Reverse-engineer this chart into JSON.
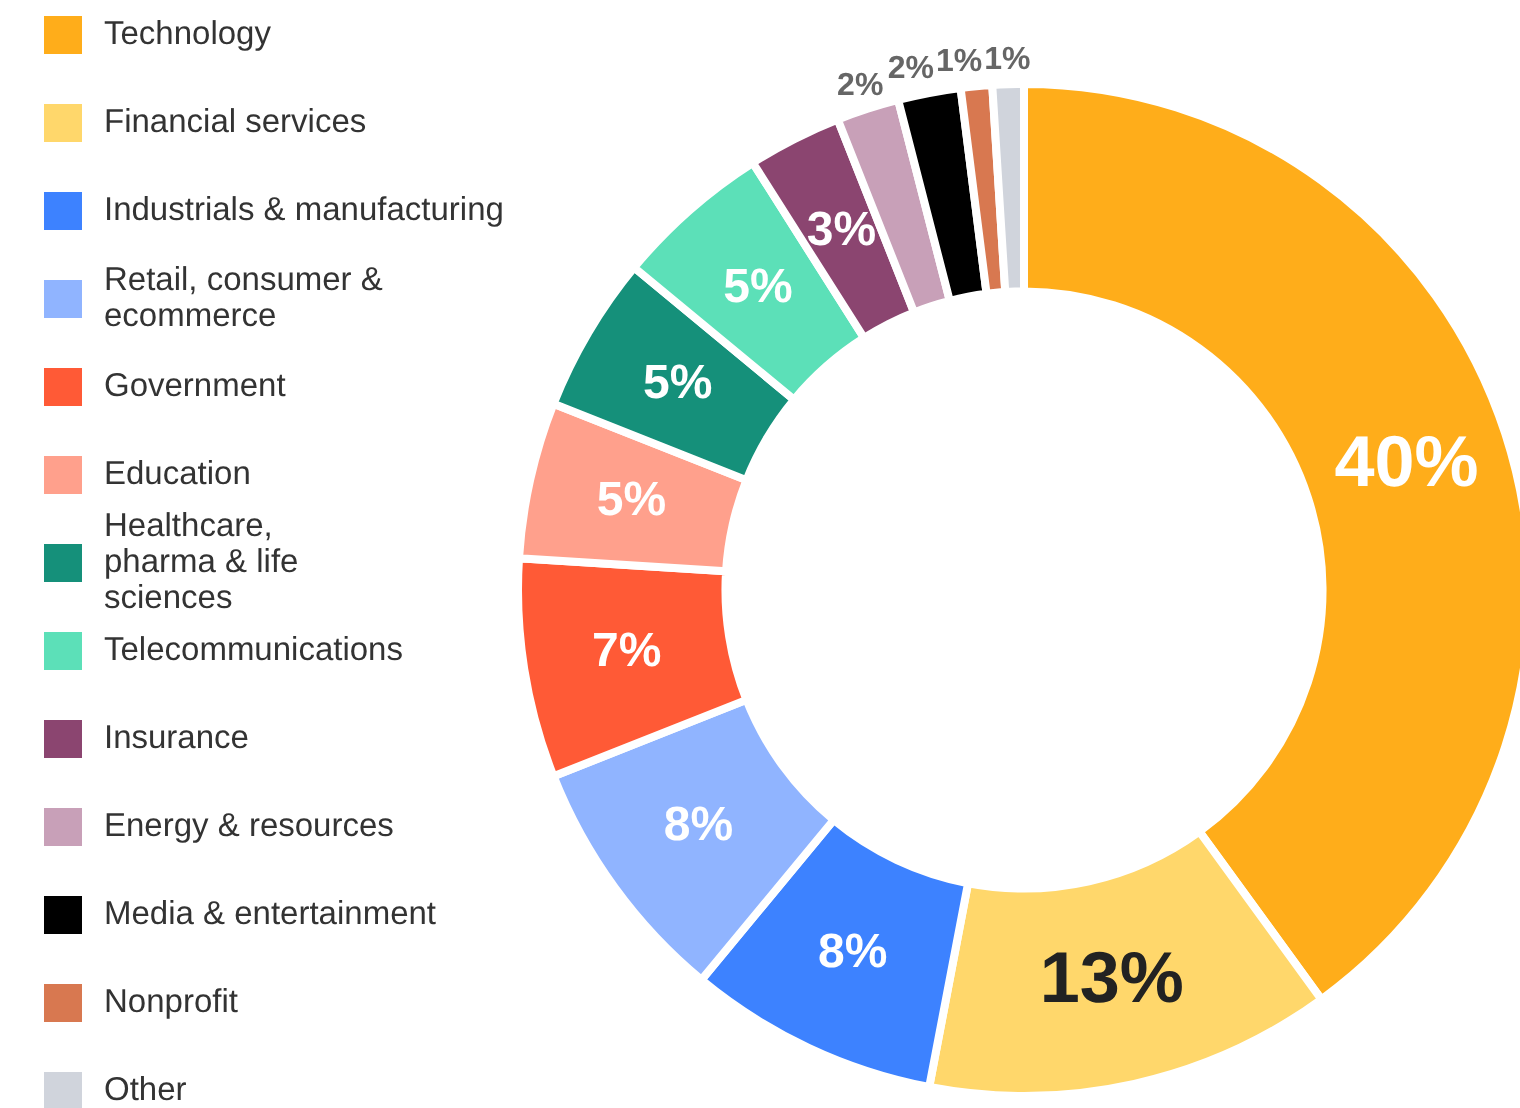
{
  "chart_data": {
    "type": "donut",
    "categories": [
      "Technology",
      "Financial services",
      "Industrials & manufacturing",
      "Retail, consumer & ecommerce",
      "Government",
      "Education",
      "Healthcare, pharma & life sciences",
      "Telecommunications",
      "Insurance",
      "Energy & resources",
      "Media & entertainment",
      "Nonprofit",
      "Other"
    ],
    "values": [
      40,
      13,
      8,
      8,
      7,
      5,
      5,
      5,
      3,
      2,
      2,
      1,
      1
    ],
    "colors": [
      "#ffad1a",
      "#ffd76b",
      "#3d82ff",
      "#90b4ff",
      "#ff5a36",
      "#ffa08c",
      "#15907a",
      "#5ce0b8",
      "#8b4570",
      "#c8a0b8",
      "#000000",
      "#d87850",
      "#d0d4dc"
    ],
    "value_labels": [
      "40%",
      "13%",
      "8%",
      "8%",
      "7%",
      "5%",
      "5%",
      "5%",
      "3%",
      "2%",
      "2%",
      "1%",
      "1%"
    ],
    "legend": "left"
  }
}
